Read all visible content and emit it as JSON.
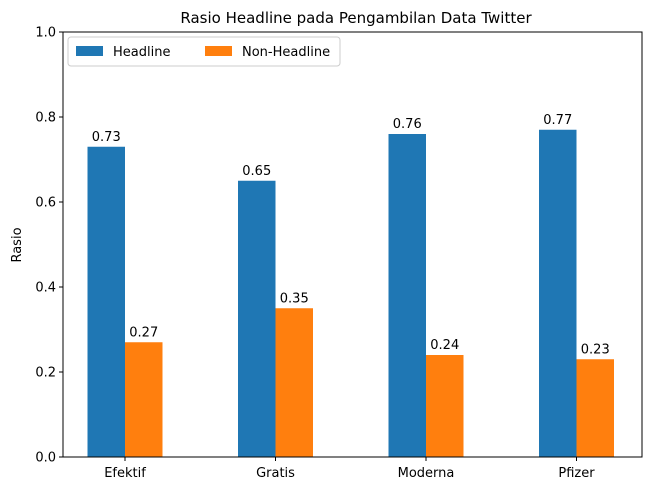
{
  "chart_data": {
    "type": "bar",
    "title": "Rasio Headline pada Pengambilan Data Twitter",
    "xlabel": "",
    "ylabel": "Rasio",
    "categories": [
      "Efektif",
      "Gratis",
      "Moderna",
      "Pfizer"
    ],
    "series": [
      {
        "name": "Headline",
        "color": "#1f77b4",
        "values": [
          0.73,
          0.65,
          0.76,
          0.77
        ],
        "labels": [
          "0.73",
          "0.65",
          "0.76",
          "0.77"
        ]
      },
      {
        "name": "Non-Headline",
        "color": "#ff7f0e",
        "values": [
          0.27,
          0.35,
          0.24,
          0.23
        ],
        "labels": [
          "0.27",
          "0.35",
          "0.24",
          "0.23"
        ]
      }
    ],
    "ylim": [
      0,
      1.0
    ],
    "yticks": [
      0.0,
      0.2,
      0.4,
      0.6,
      0.8,
      1.0
    ],
    "ytick_labels": [
      "0.0",
      "0.2",
      "0.4",
      "0.6",
      "0.8",
      "1.0"
    ],
    "grid": false,
    "legend_position": "top-left"
  }
}
